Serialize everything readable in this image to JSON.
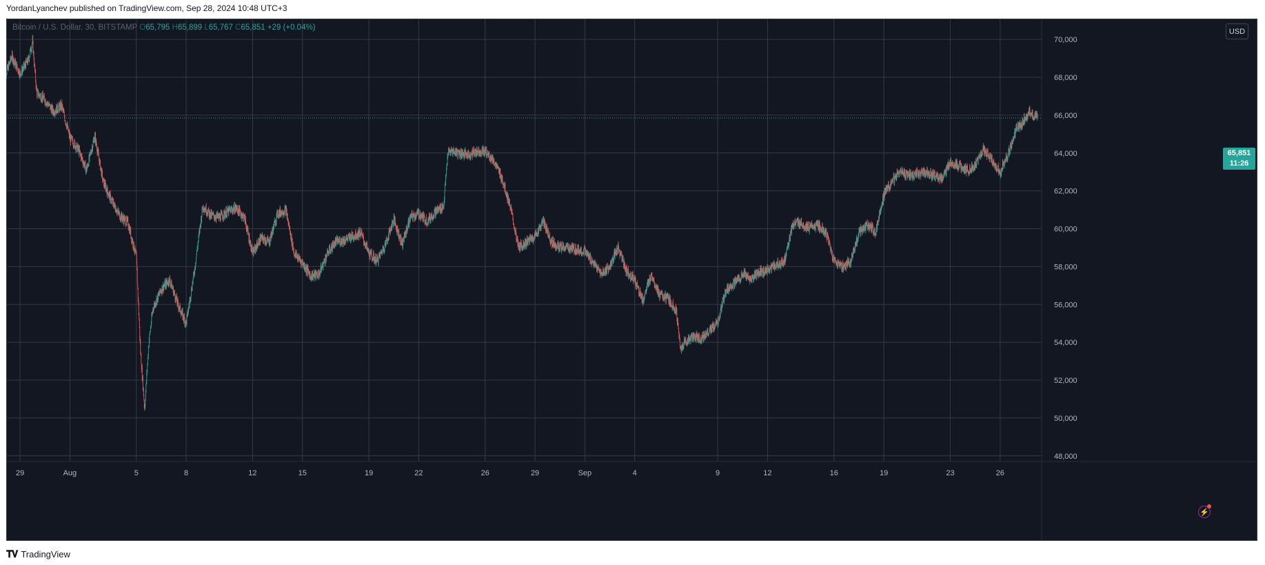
{
  "publish_line": "YordanLyanchev published on TradingView.com, Sep 28, 2024 10:48 UTC+3",
  "legend": {
    "symbol": "Bitcoin / U.S. Dollar, 30, BITSTAMP",
    "o_label": "O",
    "o_value": "65,795",
    "h_label": "H",
    "h_value": "65,899",
    "l_label": "L",
    "l_value": "65,767",
    "c_label": "C",
    "c_value": "65,851",
    "change": "+29 (+0.04%)"
  },
  "currency_button": "USD",
  "last_price": {
    "value": "65,851",
    "countdown": "11:26"
  },
  "footer": {
    "brand": "TradingView"
  },
  "colors": {
    "background": "#131722",
    "up": "#26a69a",
    "down": "#ef5350",
    "grid": "#363a45",
    "axis_text": "#b2b5be"
  },
  "icons": [
    "tradingview-logo-icon",
    "lightning-icon"
  ],
  "chart_data": {
    "type": "candlestick",
    "timeframe": "30",
    "ylim": [
      47700,
      71100
    ],
    "y_ticks": [
      48000,
      50000,
      52000,
      54000,
      56000,
      58000,
      60000,
      62000,
      64000,
      66000,
      68000,
      70000
    ],
    "y_tick_labels": [
      "48,000",
      "50,000",
      "52,000",
      "54,000",
      "56,000",
      "58,000",
      "60,000",
      "62,000",
      "64,000",
      "66,000",
      "68,000",
      "70,000"
    ],
    "x_range": [
      "Jul 28",
      "Sep 28"
    ],
    "x_ticks": [
      {
        "date": "Jul 29",
        "label": "29"
      },
      {
        "date": "Aug 1",
        "label": "Aug"
      },
      {
        "date": "Aug 5",
        "label": "5"
      },
      {
        "date": "Aug 8",
        "label": "8"
      },
      {
        "date": "Aug 12",
        "label": "12"
      },
      {
        "date": "Aug 15",
        "label": "15"
      },
      {
        "date": "Aug 19",
        "label": "19"
      },
      {
        "date": "Aug 22",
        "label": "22"
      },
      {
        "date": "Aug 26",
        "label": "26"
      },
      {
        "date": "Aug 29",
        "label": "29"
      },
      {
        "date": "Sep 1",
        "label": "Sep"
      },
      {
        "date": "Sep 4",
        "label": "4"
      },
      {
        "date": "Sep 9",
        "label": "9"
      },
      {
        "date": "Sep 12",
        "label": "12"
      },
      {
        "date": "Sep 16",
        "label": "16"
      },
      {
        "date": "Sep 19",
        "label": "19"
      },
      {
        "date": "Sep 23",
        "label": "23"
      },
      {
        "date": "Sep 26",
        "label": "26"
      }
    ],
    "close_path": [
      [
        "Jul 28 00:00",
        67800
      ],
      [
        "Jul 28 12:00",
        69100
      ],
      [
        "Jul 29 00:00",
        68200
      ],
      [
        "Jul 29 12:00",
        68900
      ],
      [
        "Jul 29 18:00",
        69900
      ],
      [
        "Jul 30 00:00",
        67200
      ],
      [
        "Jul 30 12:00",
        66800
      ],
      [
        "Jul 31 00:00",
        66200
      ],
      [
        "Jul 31 12:00",
        66500
      ],
      [
        "Aug 1 00:00",
        64800
      ],
      [
        "Aug 1 12:00",
        64200
      ],
      [
        "Aug 2 00:00",
        63100
      ],
      [
        "Aug 2 12:00",
        64900
      ],
      [
        "Aug 3 00:00",
        62500
      ],
      [
        "Aug 3 12:00",
        61500
      ],
      [
        "Aug 4 00:00",
        60700
      ],
      [
        "Aug 4 12:00",
        60300
      ],
      [
        "Aug 5 00:00",
        58500
      ],
      [
        "Aug 5 06:00",
        53500
      ],
      [
        "Aug 5 12:00",
        50500
      ],
      [
        "Aug 5 18:00",
        54000
      ],
      [
        "Aug 6 00:00",
        55800
      ],
      [
        "Aug 6 12:00",
        56800
      ],
      [
        "Aug 7 00:00",
        57300
      ],
      [
        "Aug 7 12:00",
        56000
      ],
      [
        "Aug 8 00:00",
        55000
      ],
      [
        "Aug 8 12:00",
        57800
      ],
      [
        "Aug 9 00:00",
        61200
      ],
      [
        "Aug 9 12:00",
        60700
      ],
      [
        "Aug 10 00:00",
        60600
      ],
      [
        "Aug 10 12:00",
        60900
      ],
      [
        "Aug 11 00:00",
        61100
      ],
      [
        "Aug 11 12:00",
        60600
      ],
      [
        "Aug 12 00:00",
        58700
      ],
      [
        "Aug 12 12:00",
        59500
      ],
      [
        "Aug 13 00:00",
        59300
      ],
      [
        "Aug 13 12:00",
        60800
      ],
      [
        "Aug 14 00:00",
        61000
      ],
      [
        "Aug 14 12:00",
        58700
      ],
      [
        "Aug 15 00:00",
        58200
      ],
      [
        "Aug 15 12:00",
        57500
      ],
      [
        "Aug 16 00:00",
        57600
      ],
      [
        "Aug 16 12:00",
        58700
      ],
      [
        "Aug 17 00:00",
        59300
      ],
      [
        "Aug 17 12:00",
        59400
      ],
      [
        "Aug 18 00:00",
        59600
      ],
      [
        "Aug 18 12:00",
        59800
      ],
      [
        "Aug 19 00:00",
        58700
      ],
      [
        "Aug 19 12:00",
        58300
      ],
      [
        "Aug 20 00:00",
        59200
      ],
      [
        "Aug 20 12:00",
        60500
      ],
      [
        "Aug 21 00:00",
        59200
      ],
      [
        "Aug 21 12:00",
        60600
      ],
      [
        "Aug 22 00:00",
        60800
      ],
      [
        "Aug 22 12:00",
        60400
      ],
      [
        "Aug 23 00:00",
        60900
      ],
      [
        "Aug 23 12:00",
        61200
      ],
      [
        "Aug 23 18:00",
        64000
      ],
      [
        "Aug 24 00:00",
        64100
      ],
      [
        "Aug 24 12:00",
        64000
      ],
      [
        "Aug 25 00:00",
        63900
      ],
      [
        "Aug 25 12:00",
        64100
      ],
      [
        "Aug 26 00:00",
        64100
      ],
      [
        "Aug 26 12:00",
        63600
      ],
      [
        "Aug 27 00:00",
        62700
      ],
      [
        "Aug 27 12:00",
        61200
      ],
      [
        "Aug 28 00:00",
        59000
      ],
      [
        "Aug 28 12:00",
        59300
      ],
      [
        "Aug 29 00:00",
        59600
      ],
      [
        "Aug 29 12:00",
        60400
      ],
      [
        "Aug 30 00:00",
        59300
      ],
      [
        "Aug 30 12:00",
        59000
      ],
      [
        "Aug 31 00:00",
        59000
      ],
      [
        "Aug 31 12:00",
        58900
      ],
      [
        "Sep 1 00:00",
        58800
      ],
      [
        "Sep 1 12:00",
        58200
      ],
      [
        "Sep 2 00:00",
        57600
      ],
      [
        "Sep 2 12:00",
        58000
      ],
      [
        "Sep 3 00:00",
        59000
      ],
      [
        "Sep 3 12:00",
        57800
      ],
      [
        "Sep 4 00:00",
        57300
      ],
      [
        "Sep 4 12:00",
        56200
      ],
      [
        "Sep 5 00:00",
        57600
      ],
      [
        "Sep 5 12:00",
        56500
      ],
      [
        "Sep 6 00:00",
        56300
      ],
      [
        "Sep 6 12:00",
        55700
      ],
      [
        "Sep 6 18:00",
        53600
      ],
      [
        "Sep 7 00:00",
        54000
      ],
      [
        "Sep 7 12:00",
        54300
      ],
      [
        "Sep 8 00:00",
        54200
      ],
      [
        "Sep 8 12:00",
        54600
      ],
      [
        "Sep 9 00:00",
        55000
      ],
      [
        "Sep 9 12:00",
        56800
      ],
      [
        "Sep 10 00:00",
        57100
      ],
      [
        "Sep 10 12:00",
        57600
      ],
      [
        "Sep 11 00:00",
        57300
      ],
      [
        "Sep 11 12:00",
        57700
      ],
      [
        "Sep 12 00:00",
        57800
      ],
      [
        "Sep 12 12:00",
        58100
      ],
      [
        "Sep 13 00:00",
        58200
      ],
      [
        "Sep 13 12:00",
        60200
      ],
      [
        "Sep 14 00:00",
        60300
      ],
      [
        "Sep 14 12:00",
        60000
      ],
      [
        "Sep 15 00:00",
        60200
      ],
      [
        "Sep 15 12:00",
        59800
      ],
      [
        "Sep 16 00:00",
        58300
      ],
      [
        "Sep 16 12:00",
        58000
      ],
      [
        "Sep 17 00:00",
        58300
      ],
      [
        "Sep 17 12:00",
        59800
      ],
      [
        "Sep 18 00:00",
        60200
      ],
      [
        "Sep 18 12:00",
        59800
      ],
      [
        "Sep 19 00:00",
        61800
      ],
      [
        "Sep 19 12:00",
        62500
      ],
      [
        "Sep 20 00:00",
        63000
      ],
      [
        "Sep 20 12:00",
        62800
      ],
      [
        "Sep 21 00:00",
        62900
      ],
      [
        "Sep 21 12:00",
        63000
      ],
      [
        "Sep 22 00:00",
        62800
      ],
      [
        "Sep 22 12:00",
        62600
      ],
      [
        "Sep 23 00:00",
        63500
      ],
      [
        "Sep 23 12:00",
        63300
      ],
      [
        "Sep 24 00:00",
        63100
      ],
      [
        "Sep 24 12:00",
        63300
      ],
      [
        "Sep 25 00:00",
        64200
      ],
      [
        "Sep 25 12:00",
        63600
      ],
      [
        "Sep 26 00:00",
        63000
      ],
      [
        "Sep 26 12:00",
        64000
      ],
      [
        "Sep 27 00:00",
        65300
      ],
      [
        "Sep 27 12:00",
        65800
      ],
      [
        "Sep 27 18:00",
        66200
      ],
      [
        "Sep 28 00:00",
        66000
      ],
      [
        "Sep 28 06:00",
        65851
      ]
    ],
    "last_close": 65851,
    "grid": true
  }
}
